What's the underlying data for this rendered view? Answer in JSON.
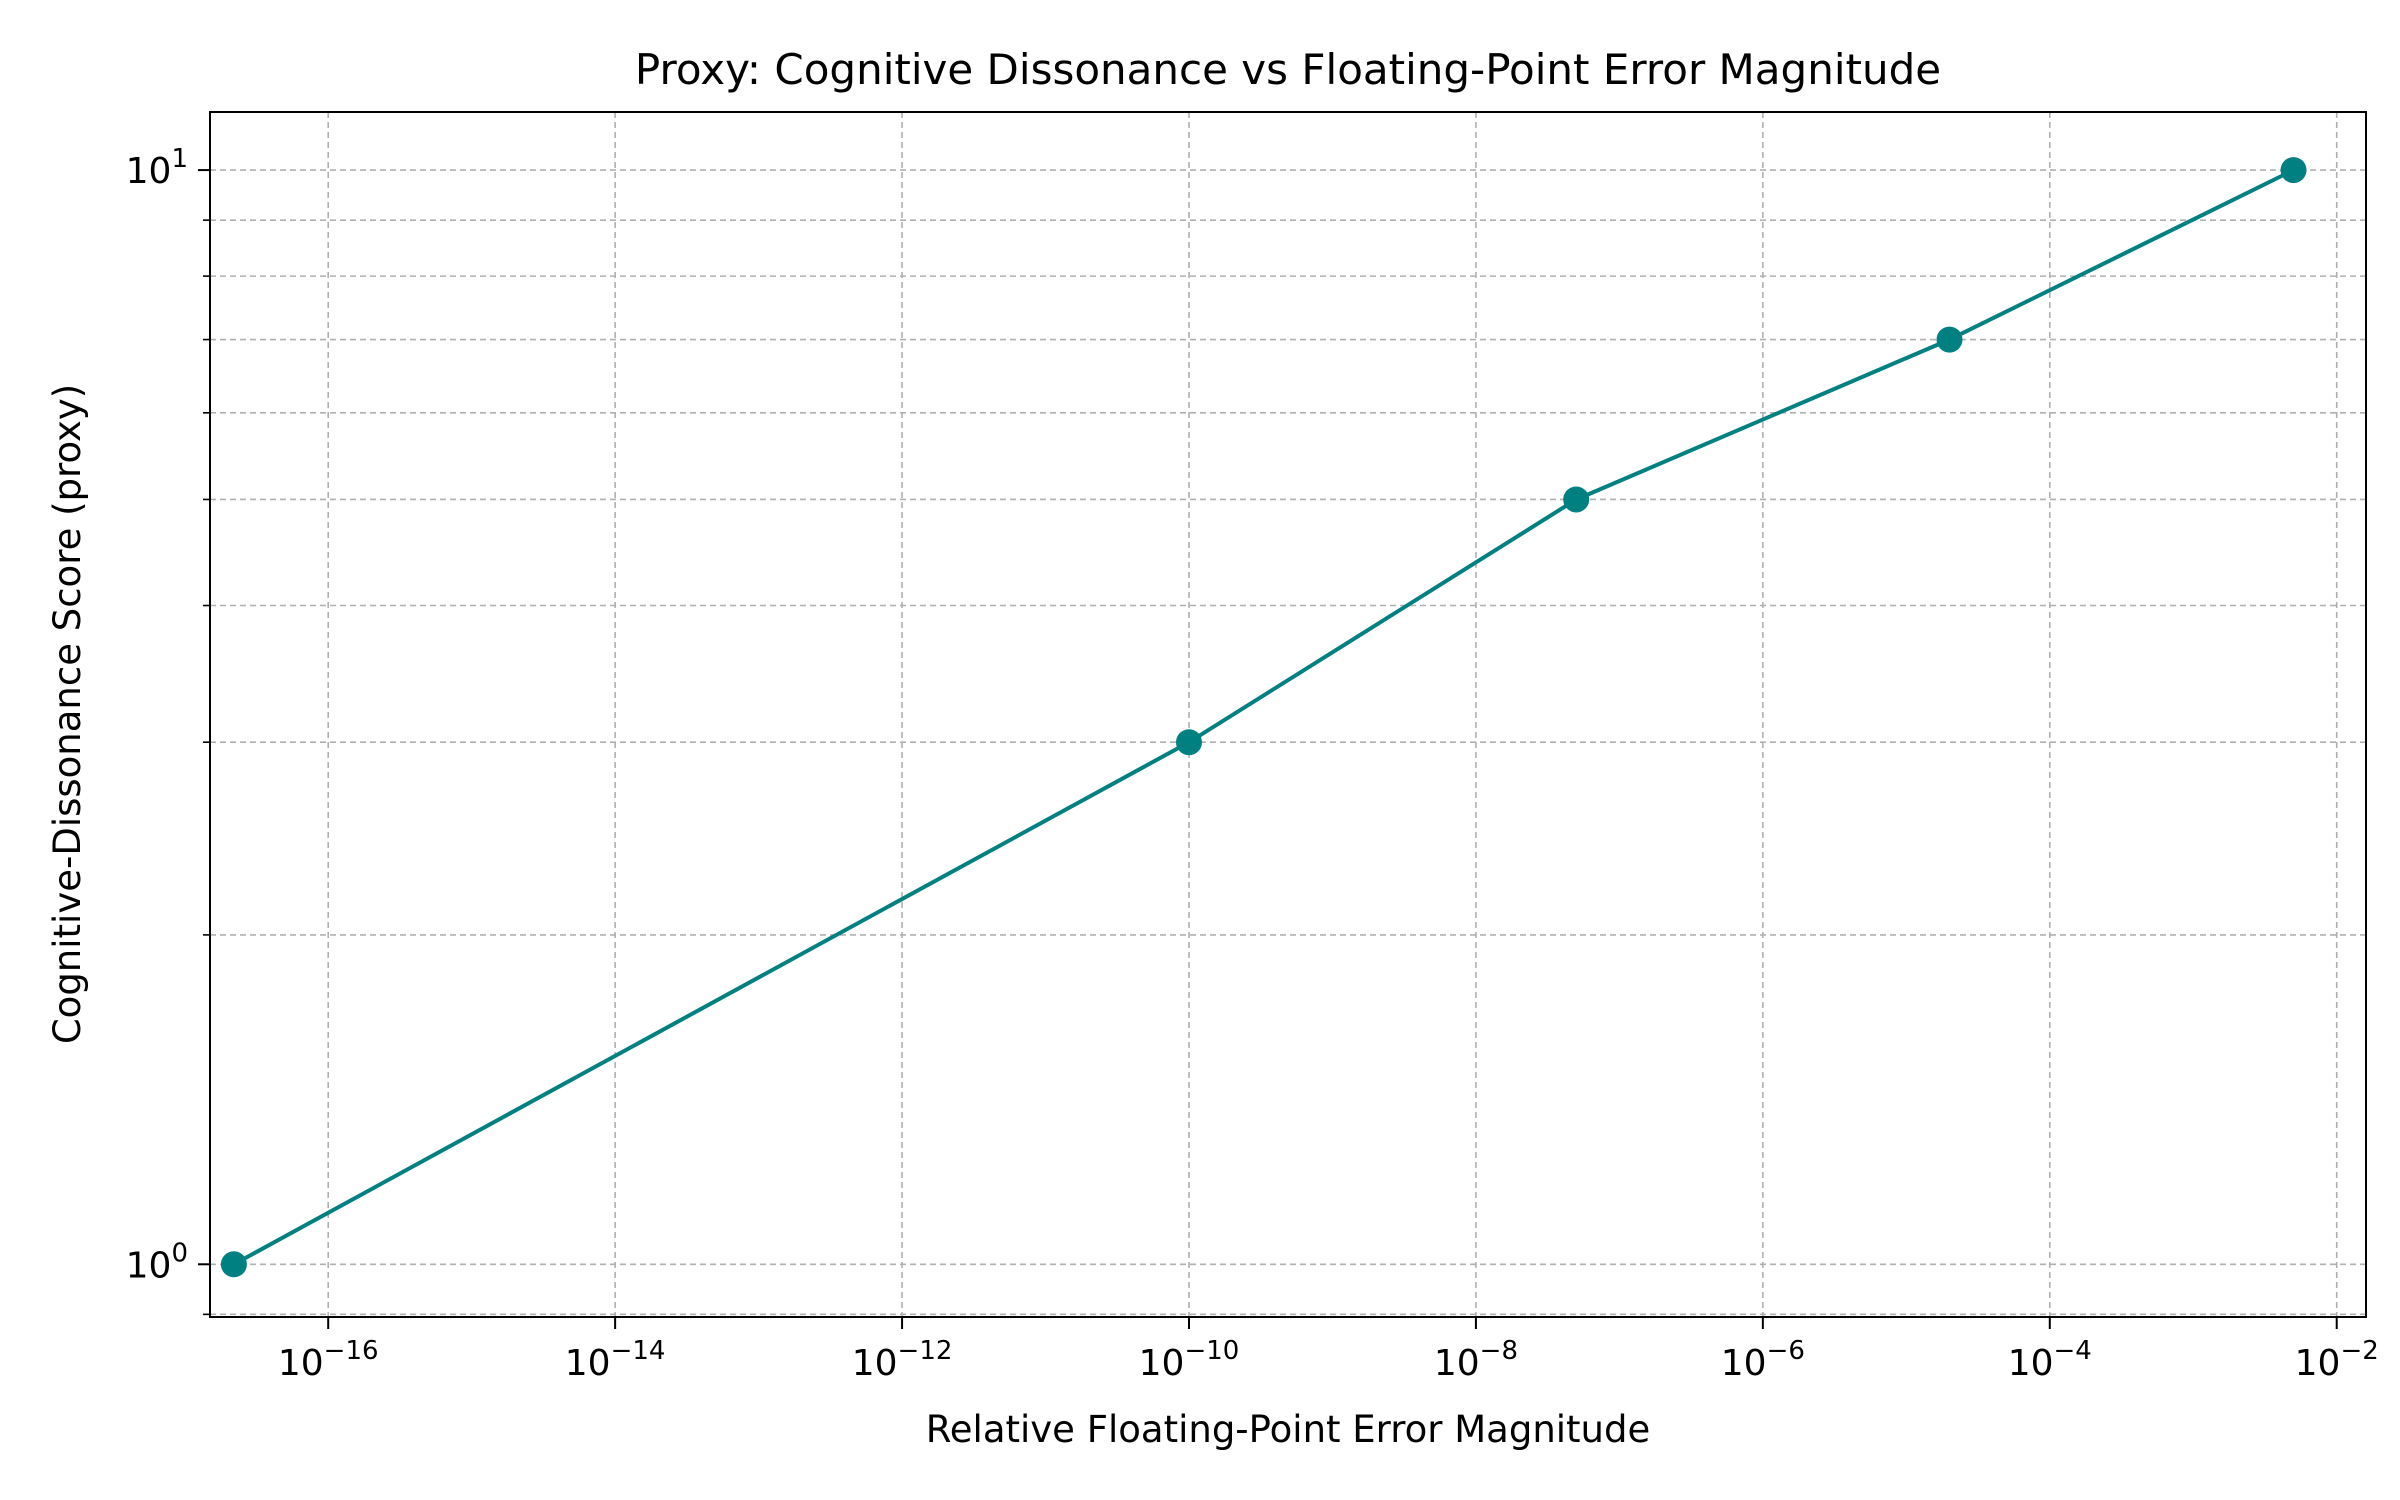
{
  "chart_data": {
    "type": "line",
    "title": "Proxy: Cognitive Dissonance vs Floating-Point Error Magnitude",
    "xlabel": "Relative Floating-Point Error Magnitude",
    "ylabel": "Cognitive-Dissonance Score (proxy)",
    "xscale": "log",
    "yscale": "log",
    "xlim": [
      1.5e-17,
      0.016
    ],
    "ylim": [
      0.895,
      11.3
    ],
    "grid": true,
    "x_ticks": [
      {
        "value": 1e-16,
        "base": "10",
        "exp": "−16"
      },
      {
        "value": 1e-14,
        "base": "10",
        "exp": "−14"
      },
      {
        "value": 1e-12,
        "base": "10",
        "exp": "−12"
      },
      {
        "value": 1e-10,
        "base": "10",
        "exp": "−10"
      },
      {
        "value": 1e-08,
        "base": "10",
        "exp": "−8"
      },
      {
        "value": 1e-06,
        "base": "10",
        "exp": "−6"
      },
      {
        "value": 0.0001,
        "base": "10",
        "exp": "−4"
      },
      {
        "value": 0.01,
        "base": "10",
        "exp": "−2"
      }
    ],
    "y_ticks": [
      {
        "value": 1,
        "base": "10",
        "exp": "0"
      },
      {
        "value": 10,
        "base": "10",
        "exp": "1"
      }
    ],
    "y_minor_ticks": [
      0.9,
      2,
      3,
      4,
      5,
      6,
      7,
      8,
      9
    ],
    "series": [
      {
        "color": "#008080",
        "marker": "circle",
        "points": [
          {
            "x": 2.2e-17,
            "y": 1.0
          },
          {
            "x": 1e-10,
            "y": 3.0
          },
          {
            "x": 5e-08,
            "y": 5.0
          },
          {
            "x": 2e-05,
            "y": 7.0
          },
          {
            "x": 0.005,
            "y": 10.0
          }
        ]
      }
    ]
  }
}
